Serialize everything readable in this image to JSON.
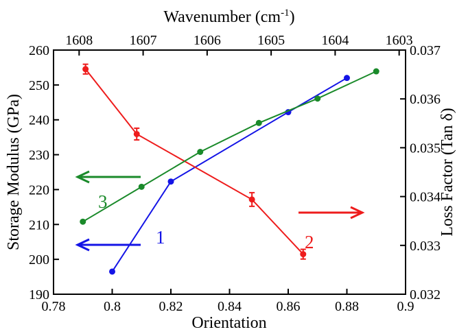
{
  "chart_data": {
    "type": "line",
    "title": "",
    "xlabel": "Orientation",
    "x2label": "Wavenumber (cm",
    "x2label_sup": "-1",
    "x2label_close": ")",
    "ylabel": "Storage Modulus (GPa)",
    "y2label": "Loss Factor (Tan δ)",
    "xlim": [
      0.78,
      0.9
    ],
    "ylim": [
      190,
      260
    ],
    "y2lim": [
      0.032,
      0.037
    ],
    "x2lim": [
      1608.4,
      1602.9
    ],
    "xticks": [
      "0.78",
      "0.8",
      "0.82",
      "0.84",
      "0.86",
      "0.88",
      "0.9"
    ],
    "xtick_values": [
      0.78,
      0.8,
      0.82,
      0.84,
      0.86,
      0.88,
      0.9
    ],
    "yticks": [
      "190",
      "200",
      "210",
      "220",
      "230",
      "240",
      "250",
      "260"
    ],
    "ytick_values": [
      190,
      200,
      210,
      220,
      230,
      240,
      250,
      260
    ],
    "y2ticks": [
      "0.032",
      "0.033",
      "0.034",
      "0.035",
      "0.036",
      "0.037"
    ],
    "y2tick_values": [
      0.032,
      0.033,
      0.034,
      0.035,
      0.036,
      0.037
    ],
    "x2ticks": [
      "1608",
      "1607",
      "1606",
      "1605",
      "1604",
      "1603"
    ],
    "x2tick_values": [
      1608,
      1607,
      1606,
      1605,
      1604,
      1603
    ],
    "grid": false,
    "series": [
      {
        "label": "1",
        "color": "#1414e6",
        "axis": "bottom-left",
        "x": [
          0.8,
          0.82,
          0.86,
          0.88
        ],
        "y": [
          196.5,
          222.3,
          242.2,
          252
        ]
      },
      {
        "label": "2",
        "color": "#ee1c1c",
        "axis": "top-right",
        "x": [
          1607.9,
          1607.1,
          1605.3,
          1604.5
        ],
        "y": [
          0.03661,
          0.03528,
          0.03394,
          0.03282
        ],
        "err": [
          0.0001,
          0.00012,
          0.00014,
          0.0001
        ]
      },
      {
        "label": "3",
        "color": "#1a8a2a",
        "axis": "bottom-left",
        "x": [
          0.79,
          0.81,
          0.83,
          0.85,
          0.87,
          0.89
        ],
        "y": [
          210.8,
          220.8,
          230.8,
          239.1,
          246.1,
          253.9
        ]
      }
    ]
  }
}
